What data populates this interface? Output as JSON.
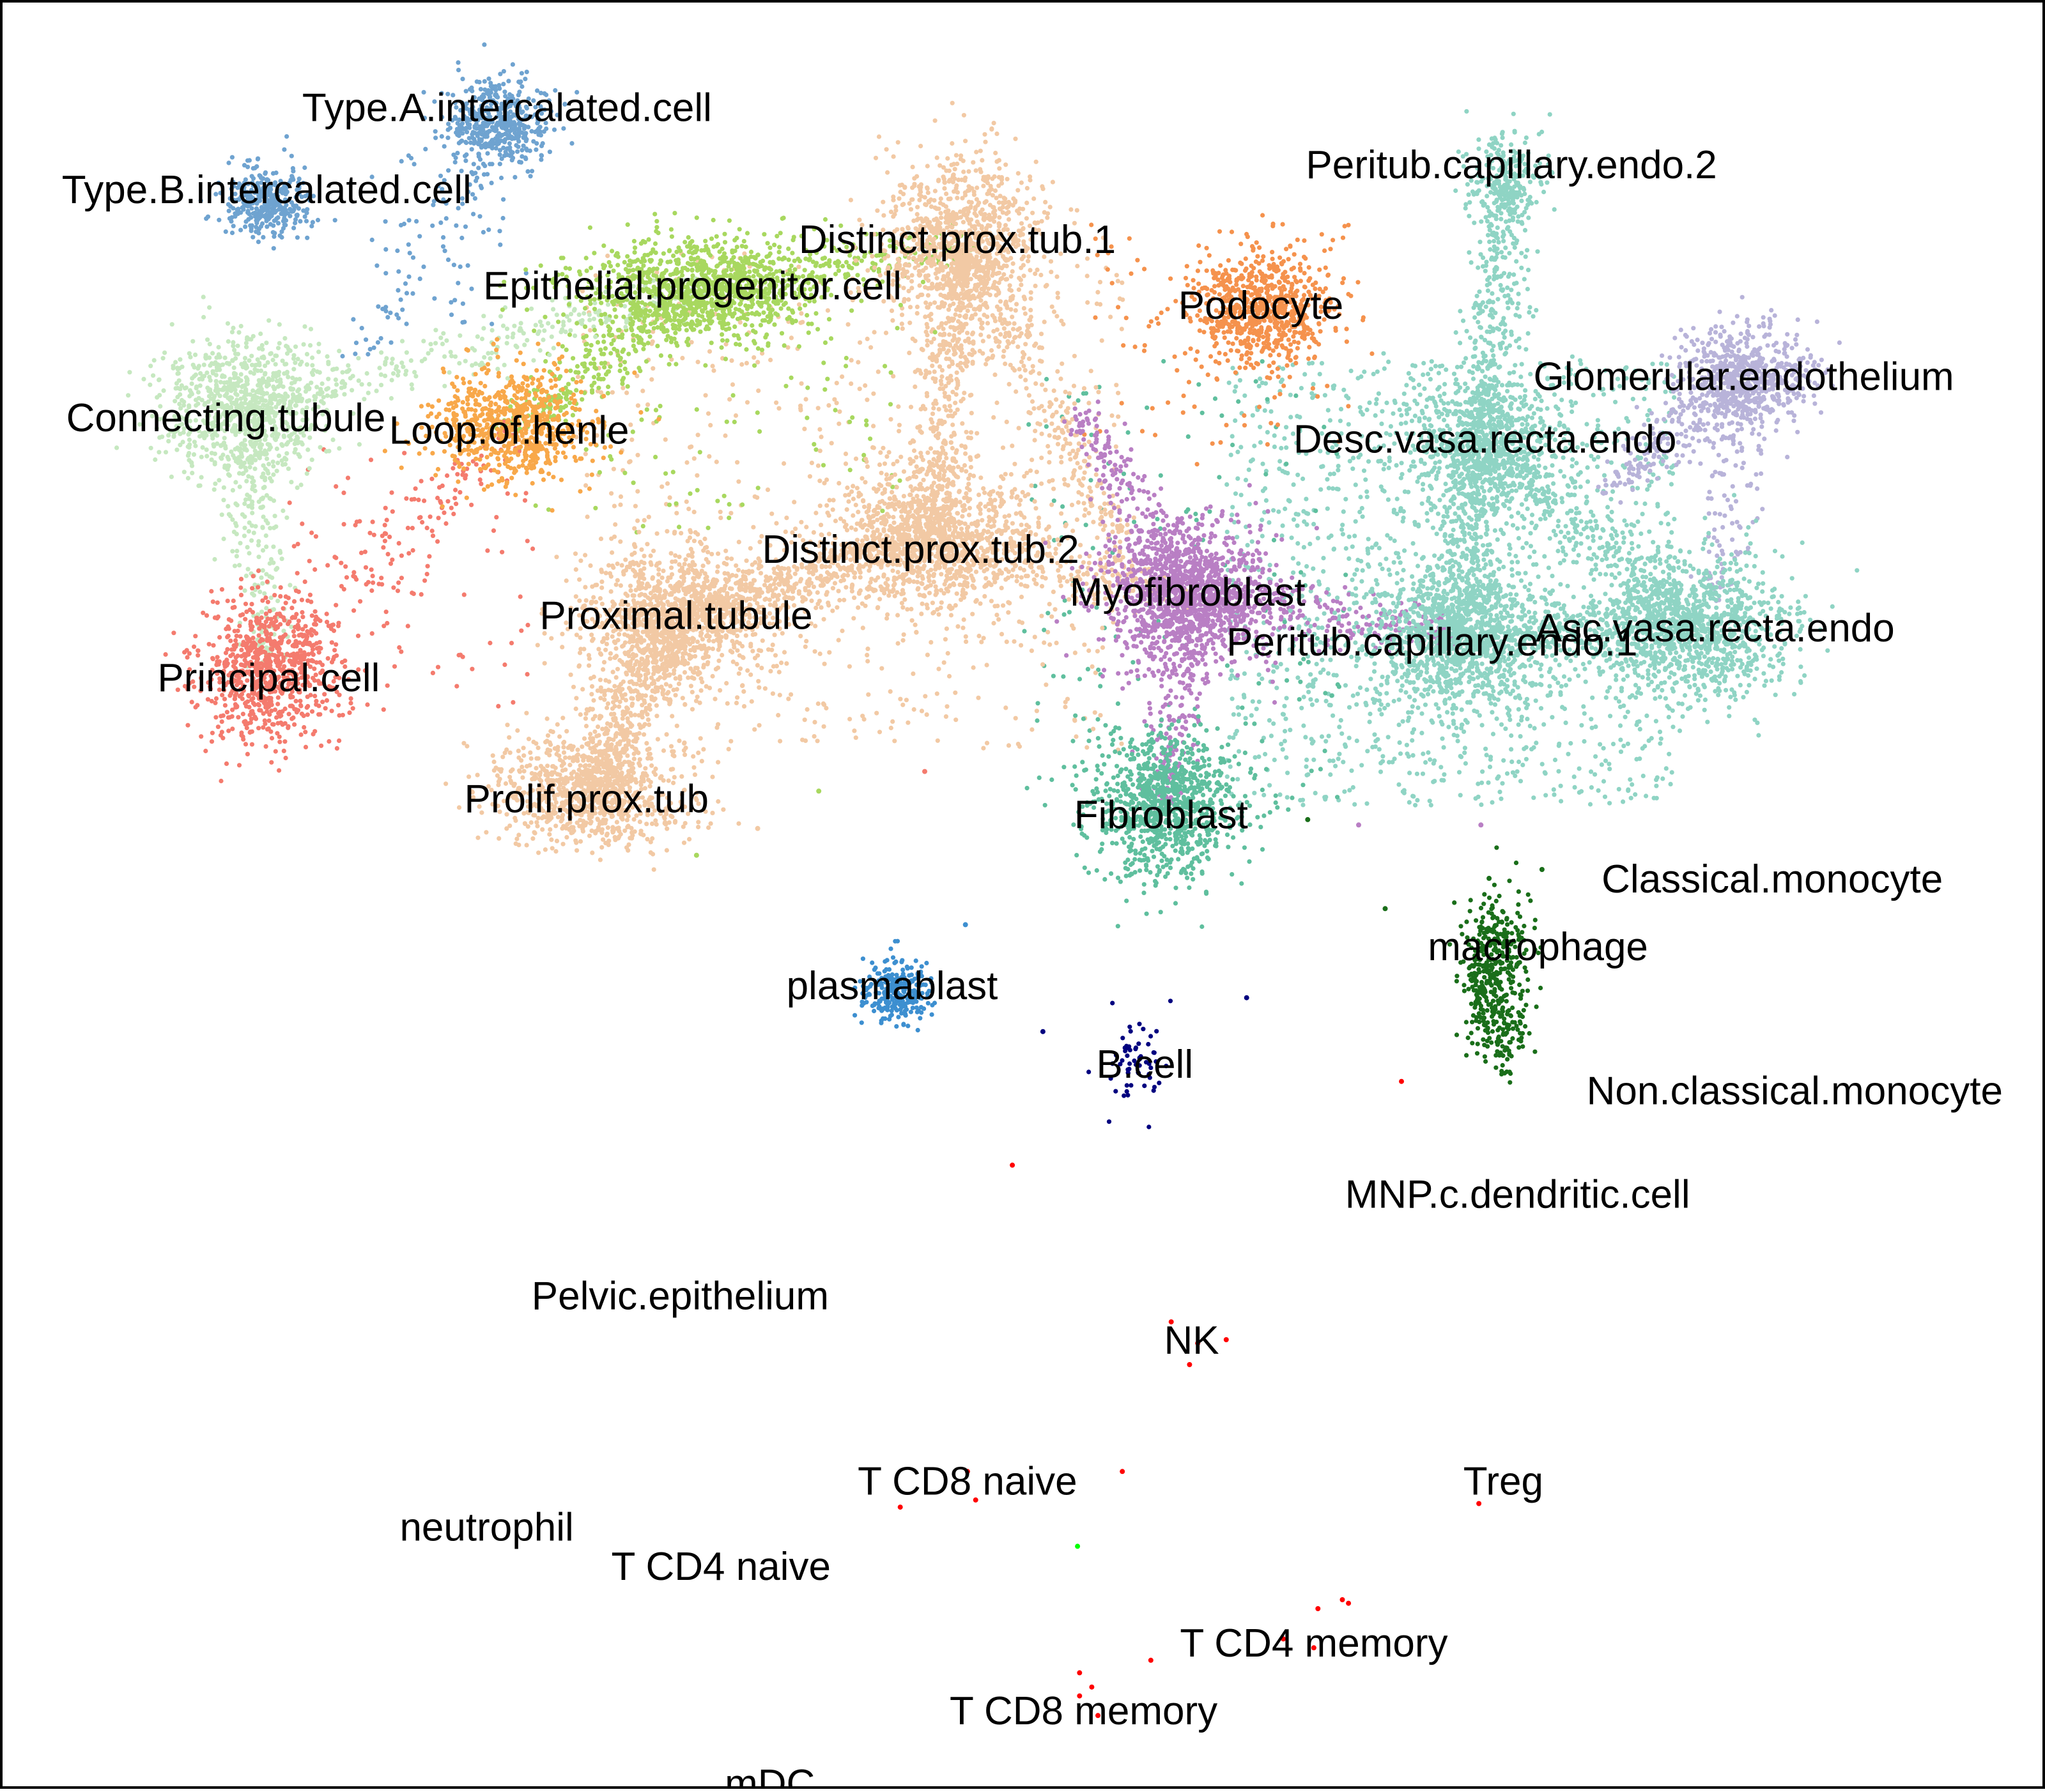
{
  "chart_data": {
    "type": "scatter",
    "title": "",
    "xlabel": "",
    "ylabel": "",
    "xlim": [
      0,
      100
    ],
    "ylim": [
      0,
      100
    ],
    "grid": false,
    "legend": "none",
    "series": [
      {
        "name": "Type.A.intercalated.cell",
        "color": "#6fa3d0",
        "cluster": {
          "cx": 24.2,
          "cy": 93.2,
          "sx": 1.3,
          "sy": 1.2,
          "n": 500
        },
        "label": [
          24.7,
          94.2
        ]
      },
      {
        "name": "Type.B.intercalated.cell",
        "color": "#6fa3d0",
        "cluster": {
          "cx": 12.9,
          "cy": 88.8,
          "sx": 1.1,
          "sy": 1.0,
          "n": 350
        },
        "label": [
          12.9,
          89.6
        ]
      },
      {
        "name": "Distinct.prox.tub.1",
        "color": "#f2c9a4",
        "cluster": {
          "cx": 47.0,
          "cy": 86.5,
          "sx": 2.0,
          "sy": 2.4,
          "n": 1000
        },
        "label": [
          46.8,
          86.8
        ]
      },
      {
        "name": "Epithelial.progenitor.cell",
        "color": "#a8d85f",
        "cluster": {
          "cx": 34.0,
          "cy": 84.0,
          "sx": 3.0,
          "sy": 1.5,
          "n": 1000
        },
        "label": [
          33.8,
          84.2
        ]
      },
      {
        "name": "Podocyte",
        "color": "#f5924d",
        "cluster": {
          "cx": 61.7,
          "cy": 82.9,
          "sx": 1.6,
          "sy": 1.6,
          "n": 700
        },
        "label": [
          61.7,
          83.1
        ]
      },
      {
        "name": "Peritub.capillary.endo.2",
        "color": "#8fd4c4",
        "cluster": {
          "cx": 73.8,
          "cy": 90.2,
          "sx": 1.0,
          "sy": 1.2,
          "n": 200
        },
        "label": [
          74.0,
          91.0
        ]
      },
      {
        "name": "Glomerular.endothelium",
        "color": "#b8b3d9",
        "cluster": {
          "cx": 85.5,
          "cy": 79.0,
          "sx": 1.6,
          "sy": 1.4,
          "n": 600
        },
        "label": [
          85.4,
          79.1
        ]
      },
      {
        "name": "Connecting.tubule",
        "color": "#c6e8c0",
        "cluster": {
          "cx": 11.8,
          "cy": 77.2,
          "sx": 2.0,
          "sy": 2.0,
          "n": 900
        },
        "label": [
          10.9,
          76.8
        ]
      },
      {
        "name": "Loop.of.henle",
        "color": "#f8a84a",
        "cluster": {
          "cx": 24.9,
          "cy": 76.2,
          "sx": 2.0,
          "sy": 1.6,
          "n": 700
        },
        "label": [
          24.8,
          76.1
        ]
      },
      {
        "name": "Desc.vasa.recta.endo",
        "color": "#8fd4c4",
        "cluster": {
          "cx": 72.5,
          "cy": 75.5,
          "sx": 2.0,
          "sy": 1.8,
          "n": 700
        },
        "label": [
          72.7,
          75.6
        ]
      },
      {
        "name": "Distinct.prox.tub.2",
        "color": "#f2c9a4",
        "cluster": {
          "cx": 45.5,
          "cy": 69.9,
          "sx": 2.6,
          "sy": 2.0,
          "n": 1100
        },
        "label": [
          45.0,
          69.4
        ]
      },
      {
        "name": "Myofibroblast",
        "color": "#b97fc4",
        "cluster": {
          "cx": 58.0,
          "cy": 66.8,
          "sx": 2.0,
          "sy": 2.0,
          "n": 1200
        },
        "label": [
          58.1,
          67.0
        ]
      },
      {
        "name": "Proximal.tubule",
        "color": "#f2c9a4",
        "cluster": {
          "cx": 33.0,
          "cy": 65.6,
          "sx": 2.4,
          "sy": 2.0,
          "n": 1100
        },
        "label": [
          33.0,
          65.7
        ]
      },
      {
        "name": "Peritub.capillary.endo.1",
        "color": "#8fd4c4",
        "cluster": {
          "cx": 71.2,
          "cy": 64.5,
          "sx": 2.2,
          "sy": 2.0,
          "n": 1100
        },
        "label": [
          70.1,
          64.2
        ]
      },
      {
        "name": "Asc.vasa.recta.endo",
        "color": "#8fd4c4",
        "cluster": {
          "cx": 82.8,
          "cy": 65.1,
          "sx": 2.4,
          "sy": 2.0,
          "n": 1100
        },
        "label": [
          84.0,
          65.0
        ]
      },
      {
        "name": "Principal.cell",
        "color": "#f47b6e",
        "cluster": {
          "cx": 13.0,
          "cy": 62.5,
          "sx": 1.6,
          "sy": 2.0,
          "n": 800
        },
        "label": [
          13.0,
          62.2
        ]
      },
      {
        "name": "Prolif.prox.tub",
        "color": "#f2c9a4",
        "cluster": {
          "cx": 28.8,
          "cy": 55.8,
          "sx": 2.4,
          "sy": 1.6,
          "n": 900
        },
        "label": [
          28.6,
          55.4
        ]
      },
      {
        "name": "Fibroblast",
        "color": "#5fbf9e",
        "cluster": {
          "cx": 57.0,
          "cy": 55.0,
          "sx": 1.8,
          "sy": 2.0,
          "n": 900
        },
        "label": [
          56.8,
          54.5
        ]
      },
      {
        "name": "Classical.monocyte",
        "color": "#1a6e1a",
        "cluster": null,
        "label": [
          86.8,
          50.9
        ]
      },
      {
        "name": "macrophage",
        "color": "#1a6e1a",
        "cluster": {
          "cx": 73.2,
          "cy": 45.5,
          "sx": 0.9,
          "sy": 2.4,
          "n": 320
        },
        "label": [
          75.3,
          47.1
        ]
      },
      {
        "name": "plasmablast",
        "color": "#3d8fd0",
        "cluster": {
          "cx": 43.8,
          "cy": 44.6,
          "sx": 0.8,
          "sy": 0.9,
          "n": 260
        },
        "label": [
          43.6,
          44.9
        ]
      },
      {
        "name": "B.cell",
        "color": "#00007f",
        "cluster": {
          "cx": 55.8,
          "cy": 40.6,
          "sx": 0.8,
          "sy": 1.2,
          "n": 60
        },
        "label": [
          56.0,
          40.5
        ]
      },
      {
        "name": "Non.classical.monocyte",
        "color": "#1a6e1a",
        "cluster": null,
        "label": [
          87.9,
          39.0
        ]
      },
      {
        "name": "MNP.c.dendritic.cell",
        "color": "#ff0000",
        "cluster": null,
        "label": [
          74.3,
          33.2
        ]
      },
      {
        "name": "Pelvic.epithelium",
        "color": "#a8d85f",
        "cluster": null,
        "label": [
          33.2,
          27.5
        ]
      },
      {
        "name": "NK",
        "color": "#ff0000",
        "cluster": null,
        "label": [
          58.3,
          25.0
        ]
      },
      {
        "name": "T CD8 naive",
        "color": "#ff0000",
        "cluster": null,
        "label": [
          47.3,
          17.1
        ]
      },
      {
        "name": "Treg",
        "color": "#ff0000",
        "cluster": null,
        "label": [
          73.6,
          17.1
        ]
      },
      {
        "name": "neutrophil",
        "color": "#00ff00",
        "cluster": null,
        "label": [
          23.7,
          14.5
        ]
      },
      {
        "name": "T CD4 naive",
        "color": "#ff0000",
        "cluster": null,
        "label": [
          35.2,
          12.3
        ]
      },
      {
        "name": "T CD4 memory",
        "color": "#ff0000",
        "cluster": null,
        "label": [
          64.3,
          8.0
        ]
      },
      {
        "name": "T CD8 memory",
        "color": "#ff0000",
        "cluster": null,
        "label": [
          53.0,
          4.2
        ]
      },
      {
        "name": "mDC",
        "color": "#ff0000",
        "cluster": null,
        "label": [
          37.6,
          0.1
        ]
      }
    ],
    "trails": [
      {
        "from": [
          47.0,
          86.5
        ],
        "to": [
          45.5,
          69.9
        ],
        "color": "#f2c9a4",
        "n": 500
      },
      {
        "from": [
          45.5,
          69.9
        ],
        "to": [
          33.0,
          65.6
        ],
        "color": "#f2c9a4",
        "n": 500
      },
      {
        "from": [
          33.0,
          65.6
        ],
        "to": [
          28.8,
          55.8
        ],
        "color": "#f2c9a4",
        "n": 500
      },
      {
        "from": [
          47.0,
          86.5
        ],
        "to": [
          55.0,
          70.0
        ],
        "color": "#f2c9a4",
        "n": 280
      },
      {
        "from": [
          45.5,
          69.9
        ],
        "to": [
          58.0,
          66.8
        ],
        "color": "#f2c9a4",
        "n": 240
      },
      {
        "from": [
          34.0,
          84.0
        ],
        "to": [
          47.0,
          86.5
        ],
        "color": "#a8d85f",
        "n": 240
      },
      {
        "from": [
          34.0,
          84.0
        ],
        "to": [
          24.9,
          76.2
        ],
        "color": "#a8d85f",
        "n": 260
      },
      {
        "from": [
          34.0,
          84.0
        ],
        "to": [
          11.8,
          77.2
        ],
        "color": "#c6e8c0",
        "n": 280
      },
      {
        "from": [
          11.8,
          77.2
        ],
        "to": [
          13.0,
          62.5
        ],
        "color": "#c6e8c0",
        "n": 220
      },
      {
        "from": [
          13.0,
          62.5
        ],
        "to": [
          24.9,
          76.2
        ],
        "color": "#f47b6e",
        "n": 120
      },
      {
        "from": [
          24.2,
          93.2
        ],
        "to": [
          17.5,
          80.0
        ],
        "color": "#6fa3d0",
        "n": 70
      },
      {
        "from": [
          73.8,
          90.2
        ],
        "to": [
          72.5,
          75.5
        ],
        "color": "#8fd4c4",
        "n": 380
      },
      {
        "from": [
          72.5,
          75.5
        ],
        "to": [
          71.2,
          64.5
        ],
        "color": "#8fd4c4",
        "n": 320
      },
      {
        "from": [
          72.5,
          75.5
        ],
        "to": [
          82.8,
          65.1
        ],
        "color": "#8fd4c4",
        "n": 320
      },
      {
        "from": [
          71.2,
          64.5
        ],
        "to": [
          82.8,
          65.1
        ],
        "color": "#8fd4c4",
        "n": 260
      },
      {
        "from": [
          85.5,
          79.0
        ],
        "to": [
          79.0,
          73.0
        ],
        "color": "#b8b3d9",
        "n": 200
      },
      {
        "from": [
          85.5,
          79.0
        ],
        "to": [
          84.0,
          67.0
        ],
        "color": "#b8b3d9",
        "n": 130
      },
      {
        "from": [
          58.0,
          66.8
        ],
        "to": [
          71.2,
          64.5
        ],
        "color": "#b97fc4",
        "n": 260
      },
      {
        "from": [
          58.0,
          66.8
        ],
        "to": [
          57.0,
          55.0
        ],
        "color": "#b97fc4",
        "n": 220
      },
      {
        "from": [
          58.0,
          66.8
        ],
        "to": [
          53.0,
          77.0
        ],
        "color": "#b97fc4",
        "n": 200
      },
      {
        "from": [
          73.2,
          48.5
        ],
        "to": [
          73.6,
          40.0
        ],
        "color": "#1a6e1a",
        "n": 130
      }
    ],
    "scatter_fields": [
      {
        "x": [
          60,
          82
        ],
        "y": [
          55,
          80
        ],
        "color": "#8fd4c4",
        "n": 1400
      },
      {
        "x": [
          50,
          66
        ],
        "y": [
          55,
          80
        ],
        "color": "#5fbf9e",
        "n": 160
      },
      {
        "x": [
          28,
          55
        ],
        "y": [
          58,
          86
        ],
        "color": "#f2c9a4",
        "n": 700
      },
      {
        "x": [
          26,
          44
        ],
        "y": [
          70,
          86
        ],
        "color": "#a8d85f",
        "n": 140
      },
      {
        "x": [
          14,
          26
        ],
        "y": [
          60,
          75
        ],
        "color": "#f47b6e",
        "n": 110
      },
      {
        "x": [
          53,
          66
        ],
        "y": [
          74,
          88
        ],
        "color": "#f5924d",
        "n": 90
      },
      {
        "x": [
          18,
          26
        ],
        "y": [
          82,
          92
        ],
        "color": "#6fa3d0",
        "n": 50
      }
    ],
    "sparse_points": [
      [
        49.5,
        34.8,
        "#ff0000"
      ],
      [
        68.6,
        39.5,
        "#ff0000"
      ],
      [
        57.3,
        26.0,
        "#ff0000"
      ],
      [
        58.6,
        24.8,
        "#ff0000"
      ],
      [
        60.0,
        25.0,
        "#ff0000"
      ],
      [
        58.2,
        23.6,
        "#ff0000"
      ],
      [
        54.9,
        17.6,
        "#ff0000"
      ],
      [
        47.3,
        17.6,
        "#ff0000"
      ],
      [
        44.0,
        15.6,
        "#ff0000"
      ],
      [
        47.7,
        16.0,
        "#ff0000"
      ],
      [
        72.4,
        15.8,
        "#ff0000"
      ],
      [
        65.7,
        10.4,
        "#ff0000"
      ],
      [
        66.0,
        10.2,
        "#ff0000"
      ],
      [
        64.5,
        9.9,
        "#ff0000"
      ],
      [
        56.3,
        7.0,
        "#ff0000"
      ],
      [
        53.4,
        5.5,
        "#ff0000"
      ],
      [
        52.8,
        5.0,
        "#ff0000"
      ],
      [
        53.7,
        3.9,
        "#ff0000"
      ],
      [
        62.8,
        8.2,
        "#ff0000"
      ],
      [
        64.3,
        7.7,
        "#ff0000"
      ],
      [
        52.8,
        6.3,
        "#ff0000"
      ],
      [
        52.7,
        13.4,
        "#00ff00"
      ],
      [
        51.0,
        42.3,
        "#00007f"
      ],
      [
        61.0,
        44.2,
        "#00007f"
      ],
      [
        47.2,
        48.3,
        "#3d8fd0"
      ],
      [
        40.0,
        55.8,
        "#a8d85f"
      ],
      [
        34.0,
        52.2,
        "#a8d85f"
      ],
      [
        64.0,
        54.2,
        "#1a6e1a"
      ],
      [
        72.9,
        50.9,
        "#1a6e1a"
      ],
      [
        75.5,
        51.4,
        "#1a6e1a"
      ],
      [
        67.8,
        49.2,
        "#1a6e1a"
      ],
      [
        45.2,
        56.9,
        "#f47b6e"
      ],
      [
        66.5,
        53.9,
        "#b97fc4"
      ],
      [
        72.5,
        53.9,
        "#b97fc4"
      ],
      [
        37.0,
        53.7,
        "#f2c9a4"
      ]
    ]
  }
}
